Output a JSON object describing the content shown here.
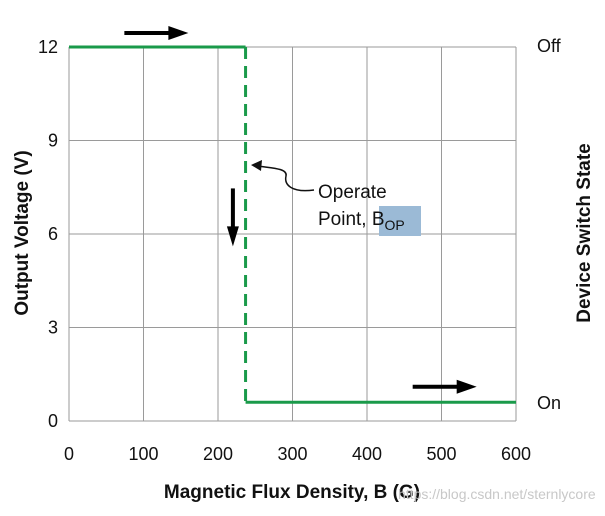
{
  "chart_data": {
    "type": "line",
    "xlabel": "Magnetic Flux Density, B (G)",
    "ylabel": "Output Voltage (V)",
    "y2label": "Device Switch State",
    "xlim": [
      0,
      600
    ],
    "ylim": [
      0,
      12
    ],
    "x_ticks": [
      "0",
      "100",
      "200",
      "300",
      "400",
      "500",
      "600"
    ],
    "y_ticks": [
      "0",
      "3",
      "6",
      "9",
      "12"
    ],
    "right_labels": [
      {
        "text": "Off",
        "y": 12
      },
      {
        "text": "On",
        "y": 0.6
      }
    ],
    "grid": true,
    "series": [
      {
        "color": "#1a9a4a",
        "segments": [
          {
            "style": "solid",
            "x": [
              0,
              237
            ],
            "y": [
              12,
              12
            ]
          },
          {
            "style": "dashed",
            "x": [
              237,
              237
            ],
            "y": [
              12,
              0.6
            ]
          },
          {
            "style": "solid",
            "x": [
              237,
              600
            ],
            "y": [
              0.6,
              0.6
            ]
          }
        ]
      }
    ],
    "annotation": {
      "line1": "Operate",
      "line2": "Point, B",
      "subscript": "OP",
      "points_to": {
        "x": 237,
        "y": 8.5
      }
    },
    "arrows": [
      {
        "direction": "right",
        "at": {
          "x": 128,
          "y": 12.45
        }
      },
      {
        "direction": "down",
        "at": {
          "x": 220,
          "y": 6.5
        }
      },
      {
        "direction": "right",
        "at": {
          "x": 515,
          "y": 1.1
        }
      }
    ],
    "watermark": "https://blog.csdn.net/sternlycore"
  }
}
